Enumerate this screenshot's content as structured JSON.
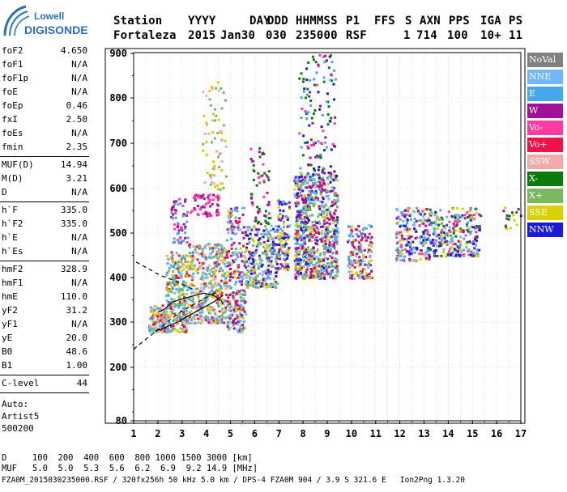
{
  "logo": {
    "line1": "Lowell",
    "line2": "DIGISONDE"
  },
  "header": {
    "labels": [
      "Station",
      "YYYY",
      "DAY",
      "DDD",
      "HHMMSS",
      "P1",
      "FFS",
      "S",
      "AXN",
      "PPS",
      "IGA",
      "PS"
    ],
    "values": [
      "Fortaleza",
      "2015",
      "Jan30",
      "030",
      "235000",
      "RSF",
      "",
      "1",
      "714",
      "100",
      "10+",
      "11"
    ]
  },
  "params": {
    "group1": [
      {
        "label": "foF2",
        "value": "4.650"
      },
      {
        "label": "foF1",
        "value": "N/A"
      },
      {
        "label": "foF1p",
        "value": "N/A"
      },
      {
        "label": "foE",
        "value": "N/A"
      },
      {
        "label": "foEp",
        "value": "0.46"
      },
      {
        "label": "fxI",
        "value": "2.50"
      },
      {
        "label": "foEs",
        "value": "N/A"
      },
      {
        "label": "fmin",
        "value": "2.35"
      }
    ],
    "group2": [
      {
        "label": "MUF(D)",
        "value": "14.94"
      },
      {
        "label": "M(D)",
        "value": "3.21"
      },
      {
        "label": "D",
        "value": "N/A"
      }
    ],
    "group3": [
      {
        "label": "h`F",
        "value": "335.0"
      },
      {
        "label": "h`F2",
        "value": "335.0"
      },
      {
        "label": "h`E",
        "value": "N/A"
      },
      {
        "label": "h`Es",
        "value": "N/A"
      }
    ],
    "group4": [
      {
        "label": "hmF2",
        "value": "328.9"
      },
      {
        "label": "hmF1",
        "value": "N/A"
      },
      {
        "label": "hmE",
        "value": "110.0"
      },
      {
        "label": "yF2",
        "value": "31.2"
      },
      {
        "label": "yF1",
        "value": "N/A"
      },
      {
        "label": "yE",
        "value": "20.0"
      },
      {
        "label": "B0",
        "value": "48.6"
      },
      {
        "label": "B1",
        "value": "1.00"
      }
    ],
    "group5": [
      {
        "label": "C-level",
        "value": "44"
      }
    ],
    "auto": [
      "Auto:",
      "Artist5",
      "500200"
    ]
  },
  "legend": [
    {
      "label": "NoVal",
      "color": "#808080"
    },
    {
      "label": "NNE",
      "color": "#6fb7ff"
    },
    {
      "label": "E",
      "color": "#46a8e8"
    },
    {
      "label": "W",
      "color": "#a0129a"
    },
    {
      "label": "Vo-",
      "color": "#ff3aa0"
    },
    {
      "label": "Vo+",
      "color": "#f0104a"
    },
    {
      "label": "SSW",
      "color": "#f5a8a8"
    },
    {
      "label": "X-",
      "color": "#0a7a0a"
    },
    {
      "label": "X+",
      "color": "#7ab860"
    },
    {
      "label": "SSE",
      "color": "#d8d000"
    },
    {
      "label": "NNW",
      "color": "#1a1ad8"
    }
  ],
  "footer": {
    "row1": "D     100  200  400  600  800 1000 1500 3000 [km]",
    "row2": "MUF   5.0  5.0  5.3  5.6  6.2  6.9  9.2 14.9 [MHz]",
    "row3": "FZA0M_2015030235000.RSF / 320fx256h 50 kHz 5.0 km / DPS-4 FZA0M 904 / 3.9 S 321.6 E   Ion2Png 1.3.20"
  },
  "chart_data": {
    "type": "scatter",
    "xlim": [
      1,
      17
    ],
    "ylim": [
      80,
      900
    ],
    "x_ticks": [
      "1",
      "2",
      "3",
      "4",
      "5",
      "6",
      "7",
      "8",
      "9",
      "10",
      "11",
      "12",
      "13",
      "14",
      "15",
      "16",
      "17"
    ],
    "y_ticks": [
      "80",
      "200",
      "300",
      "400",
      "500",
      "600",
      "700",
      "800",
      "900"
    ],
    "y_tick_values": [
      80,
      200,
      300,
      400,
      500,
      600,
      700,
      800,
      900
    ],
    "grid": true,
    "clusters": [
      {
        "x": [
          1.6,
          2.3
        ],
        "y": [
          280,
          340
        ],
        "colors": [
          "E",
          "SSE",
          "Vo+",
          "SSW",
          "NNE"
        ],
        "n": 140
      },
      {
        "x": [
          2.3,
          3.2
        ],
        "y": [
          280,
          460
        ],
        "colors": [
          "E",
          "NNE",
          "SSE",
          "Vo+",
          "X+"
        ],
        "n": 260
      },
      {
        "x": [
          2.5,
          3.2
        ],
        "y": [
          480,
          580
        ],
        "colors": [
          "W",
          "Vo-",
          "E"
        ],
        "n": 60
      },
      {
        "x": [
          3.2,
          4.8
        ],
        "y": [
          300,
          480
        ],
        "colors": [
          "E",
          "NNE",
          "SSE",
          "X+",
          "Vo+",
          "SSW"
        ],
        "n": 420
      },
      {
        "x": [
          3.3,
          4.5
        ],
        "y": [
          540,
          590
        ],
        "colors": [
          "W",
          "Vo-"
        ],
        "n": 60
      },
      {
        "x": [
          3.8,
          4.8
        ],
        "y": [
          600,
          840
        ],
        "colors": [
          "SSE",
          "X+",
          "SSW"
        ],
        "n": 70
      },
      {
        "x": [
          4.8,
          5.6
        ],
        "y": [
          280,
          560
        ],
        "colors": [
          "E",
          "NNE",
          "SSE",
          "Vo+",
          "W"
        ],
        "n": 260
      },
      {
        "x": [
          5.6,
          6.9
        ],
        "y": [
          380,
          520
        ],
        "colors": [
          "E",
          "NNE",
          "SSE",
          "NNW",
          "W",
          "X+"
        ],
        "n": 260
      },
      {
        "x": [
          5.8,
          6.6
        ],
        "y": [
          520,
          700
        ],
        "colors": [
          "W",
          "Vo-",
          "X-"
        ],
        "n": 60
      },
      {
        "x": [
          6.9,
          7.4
        ],
        "y": [
          420,
          580
        ],
        "colors": [
          "NNW",
          "E",
          "W",
          "SSE"
        ],
        "n": 110
      },
      {
        "x": [
          7.6,
          9.4
        ],
        "y": [
          400,
          640
        ],
        "colors": [
          "NNW",
          "E",
          "NNE",
          "SSE",
          "W",
          "Vo+",
          "X+"
        ],
        "n": 780
      },
      {
        "x": [
          7.8,
          9.3
        ],
        "y": [
          640,
          900
        ],
        "colors": [
          "W",
          "NNW",
          "Vo-",
          "X-",
          "E"
        ],
        "n": 120
      },
      {
        "x": [
          9.8,
          10.8
        ],
        "y": [
          400,
          520
        ],
        "colors": [
          "SSE",
          "E",
          "W",
          "NNE",
          "Vo+"
        ],
        "n": 160
      },
      {
        "x": [
          11.8,
          13.2
        ],
        "y": [
          440,
          560
        ],
        "colors": [
          "E",
          "NNE",
          "W",
          "Vo-",
          "SSE",
          "NNW"
        ],
        "n": 220
      },
      {
        "x": [
          13.2,
          15.3
        ],
        "y": [
          450,
          560
        ],
        "colors": [
          "E",
          "NNE",
          "W",
          "Vo-",
          "SSE",
          "X-",
          "NNW"
        ],
        "n": 260
      },
      {
        "x": [
          16.2,
          17.0
        ],
        "y": [
          510,
          560
        ],
        "colors": [
          "X-",
          "W",
          "SSE"
        ],
        "n": 18
      }
    ],
    "trace_solid": {
      "x": [
        1.9,
        2.3,
        2.8,
        3.3,
        3.8,
        4.3,
        4.7
      ],
      "y": [
        280,
        288,
        300,
        315,
        330,
        345,
        360
      ]
    },
    "trace_dashed": {
      "x": [
        1.0,
        1.5,
        2.0,
        2.5,
        3.0,
        3.5,
        4.0,
        4.5
      ],
      "y": [
        240,
        262,
        283,
        305,
        325,
        340,
        355,
        370
      ]
    },
    "profile_dashed": {
      "x": [
        1.1,
        1.6,
        2.1,
        2.6,
        3.0,
        3.4
      ],
      "y": [
        435,
        420,
        405,
        395,
        385,
        375
      ]
    },
    "profile_solid": {
      "x": [
        2.0,
        2.3,
        2.6,
        3.0,
        3.4,
        3.9,
        4.3,
        4.6,
        4.7
      ],
      "y": [
        322,
        330,
        345,
        352,
        358,
        365,
        360,
        350,
        340
      ]
    }
  }
}
